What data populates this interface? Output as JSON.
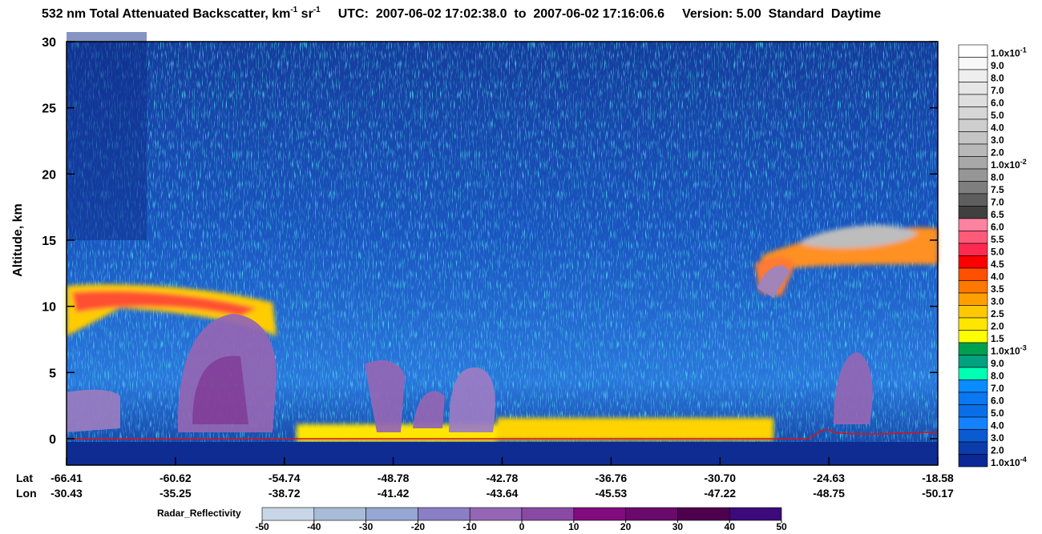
{
  "chart_data": {
    "type": "curtain",
    "title": {
      "main": "532 nm Total Attenuated Backscatter, km",
      "sup1": "-1",
      "mid": " sr",
      "sup2": "-1",
      "utc": "UTC:  2007-06-02 17:02:38.0  to  2007-06-02 17:16:06.6",
      "version": "Version: 5.00  Standard  Daytime"
    },
    "ylabel": "Altitude, km",
    "ylim": [
      -2,
      30
    ],
    "yticks": [
      0,
      5,
      10,
      15,
      20,
      25,
      30
    ],
    "x_row_labels": [
      "Lat",
      "Lon"
    ],
    "lat_ticks": [
      -66.41,
      -60.62,
      -54.74,
      -48.78,
      -42.78,
      -36.76,
      {
        "value": -30.7,
        "label": "-30.70"
      },
      -24.63,
      -18.58
    ],
    "lon_ticks": [
      -30.43,
      -35.25,
      -38.72,
      -41.42,
      -43.64,
      -45.53,
      -47.22,
      -48.75,
      -50.17
    ],
    "colorbar": [
      {
        "value": 0.1,
        "label": "1.0x10",
        "exponent": "-1",
        "color": "#ffffff"
      },
      {
        "value": 0.09,
        "label": "9.0",
        "color": "#f7f7f7"
      },
      {
        "value": 0.08,
        "label": "8.0",
        "color": "#eeeeee"
      },
      {
        "value": 0.07,
        "label": "7.0",
        "color": "#e6e6e6"
      },
      {
        "value": 0.06,
        "label": "6.0",
        "color": "#dedede"
      },
      {
        "value": 0.05,
        "label": "5.0",
        "color": "#d6d6d6"
      },
      {
        "value": 0.04,
        "label": "4.0",
        "color": "#cecece"
      },
      {
        "value": 0.03,
        "label": "3.0",
        "color": "#c4c4c4"
      },
      {
        "value": 0.02,
        "label": "2.0",
        "color": "#b8b8b8"
      },
      {
        "value": 0.01,
        "label": "1.0x10",
        "exponent": "-2",
        "color": "#a8a8a8"
      },
      {
        "value": 0.008,
        "label": "8.0",
        "color": "#969696"
      },
      {
        "value": 0.0075,
        "label": "7.5",
        "color": "#7e7e7e"
      },
      {
        "value": 0.007,
        "label": "7.0",
        "color": "#5e5e5e"
      },
      {
        "value": 0.0065,
        "label": "6.5",
        "color": "#404040"
      },
      {
        "value": 0.006,
        "label": "6.0",
        "color": "#ff82a0"
      },
      {
        "value": 0.0055,
        "label": "5.5",
        "color": "#ff5a7a"
      },
      {
        "value": 0.005,
        "label": "5.0",
        "color": "#ff2a50"
      },
      {
        "value": 0.0045,
        "label": "4.5",
        "color": "#ff0000"
      },
      {
        "value": 0.004,
        "label": "4.0",
        "color": "#ff5000"
      },
      {
        "value": 0.0035,
        "label": "3.5",
        "color": "#ff7800"
      },
      {
        "value": 0.003,
        "label": "3.0",
        "color": "#ffa000"
      },
      {
        "value": 0.0025,
        "label": "2.5",
        "color": "#ffc800"
      },
      {
        "value": 0.002,
        "label": "2.0",
        "color": "#ffe600"
      },
      {
        "value": 0.0015,
        "label": "1.5",
        "color": "#ffff00"
      },
      {
        "value": 0.001,
        "label": "1.0x10",
        "exponent": "-3",
        "color": "#00a050"
      },
      {
        "value": 0.0009,
        "label": "9.0",
        "color": "#00a080"
      },
      {
        "value": 0.0008,
        "label": "8.0",
        "color": "#00ffb4"
      },
      {
        "value": 0.0007,
        "label": "7.0",
        "color": "#0a8cff"
      },
      {
        "value": 0.0006,
        "label": "6.0",
        "color": "#0a78f0"
      },
      {
        "value": 0.0005,
        "label": "5.0",
        "color": "#0a6ee6"
      },
      {
        "value": 0.0004,
        "label": "4.0",
        "color": "#1482ff"
      },
      {
        "value": 0.0003,
        "label": "3.0",
        "color": "#0a5ad2"
      },
      {
        "value": 0.0002,
        "label": "2.0",
        "color": "#0a3caa"
      },
      {
        "value": 0.0001,
        "label": "1.0x10",
        "exponent": "-4",
        "color": "#0a2896"
      }
    ],
    "radar_title": "Radar_Reflectivity",
    "radar_ticks": [
      -50,
      -40,
      -30,
      -20,
      -10,
      0,
      10,
      20,
      30,
      40,
      50
    ],
    "radar_colors": [
      "#c8d6e8",
      "#a8bcd8",
      "#96a6d2",
      "#8a7ec4",
      "#9466b4",
      "#8a4aa4",
      "#800c80",
      "#6a0a6a",
      "#4e004e",
      "#3c0a7a"
    ]
  }
}
